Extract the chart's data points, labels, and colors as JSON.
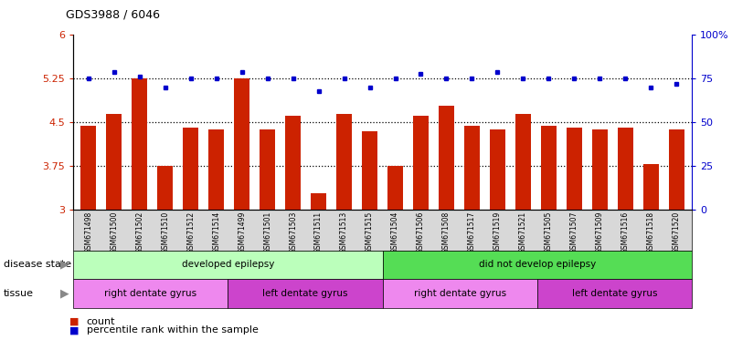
{
  "title": "GDS3988 / 6046",
  "samples": [
    "GSM671498",
    "GSM671500",
    "GSM671502",
    "GSM671510",
    "GSM671512",
    "GSM671514",
    "GSM671499",
    "GSM671501",
    "GSM671503",
    "GSM671511",
    "GSM671513",
    "GSM671515",
    "GSM671504",
    "GSM671506",
    "GSM671508",
    "GSM671517",
    "GSM671519",
    "GSM671521",
    "GSM671505",
    "GSM671507",
    "GSM671509",
    "GSM671516",
    "GSM671518",
    "GSM671520"
  ],
  "bar_values": [
    4.45,
    4.65,
    5.25,
    3.75,
    4.42,
    4.38,
    5.25,
    4.38,
    4.62,
    3.28,
    4.65,
    4.35,
    3.75,
    4.62,
    4.78,
    4.45,
    4.38,
    4.65,
    4.45,
    4.42,
    4.38,
    4.42,
    3.78,
    4.38
  ],
  "dot_values": [
    75,
    79,
    76,
    70,
    75,
    75,
    79,
    75,
    75,
    68,
    75,
    70,
    75,
    78,
    75,
    75,
    79,
    75,
    75,
    75,
    75,
    75,
    70,
    72
  ],
  "bar_color": "#cc2200",
  "dot_color": "#0000cc",
  "ylim_left": [
    3,
    6
  ],
  "ylim_right": [
    0,
    100
  ],
  "yticks_left": [
    3,
    3.75,
    4.5,
    5.25,
    6
  ],
  "yticks_right": [
    0,
    25,
    50,
    75,
    100
  ],
  "ytick_labels_left": [
    "3",
    "3.75",
    "4.5",
    "5.25",
    "6"
  ],
  "ytick_labels_right": [
    "0",
    "25",
    "50",
    "75",
    "100%"
  ],
  "hlines": [
    3.75,
    4.5,
    5.25
  ],
  "disease_state_groups": [
    {
      "label": "developed epilepsy",
      "start": 0,
      "end": 12,
      "color": "#bbffbb"
    },
    {
      "label": "did not develop epilepsy",
      "start": 12,
      "end": 24,
      "color": "#55dd55"
    }
  ],
  "tissue_groups": [
    {
      "label": "right dentate gyrus",
      "start": 0,
      "end": 6,
      "color": "#ee88ee"
    },
    {
      "label": "left dentate gyrus",
      "start": 6,
      "end": 12,
      "color": "#cc44cc"
    },
    {
      "label": "right dentate gyrus",
      "start": 12,
      "end": 18,
      "color": "#ee88ee"
    },
    {
      "label": "left dentate gyrus",
      "start": 18,
      "end": 24,
      "color": "#cc44cc"
    }
  ],
  "legend_count_color": "#cc2200",
  "legend_dot_color": "#0000cc",
  "background_color": "#ffffff",
  "plot_bg_color": "#ffffff",
  "xtick_bg_color": "#d8d8d8"
}
